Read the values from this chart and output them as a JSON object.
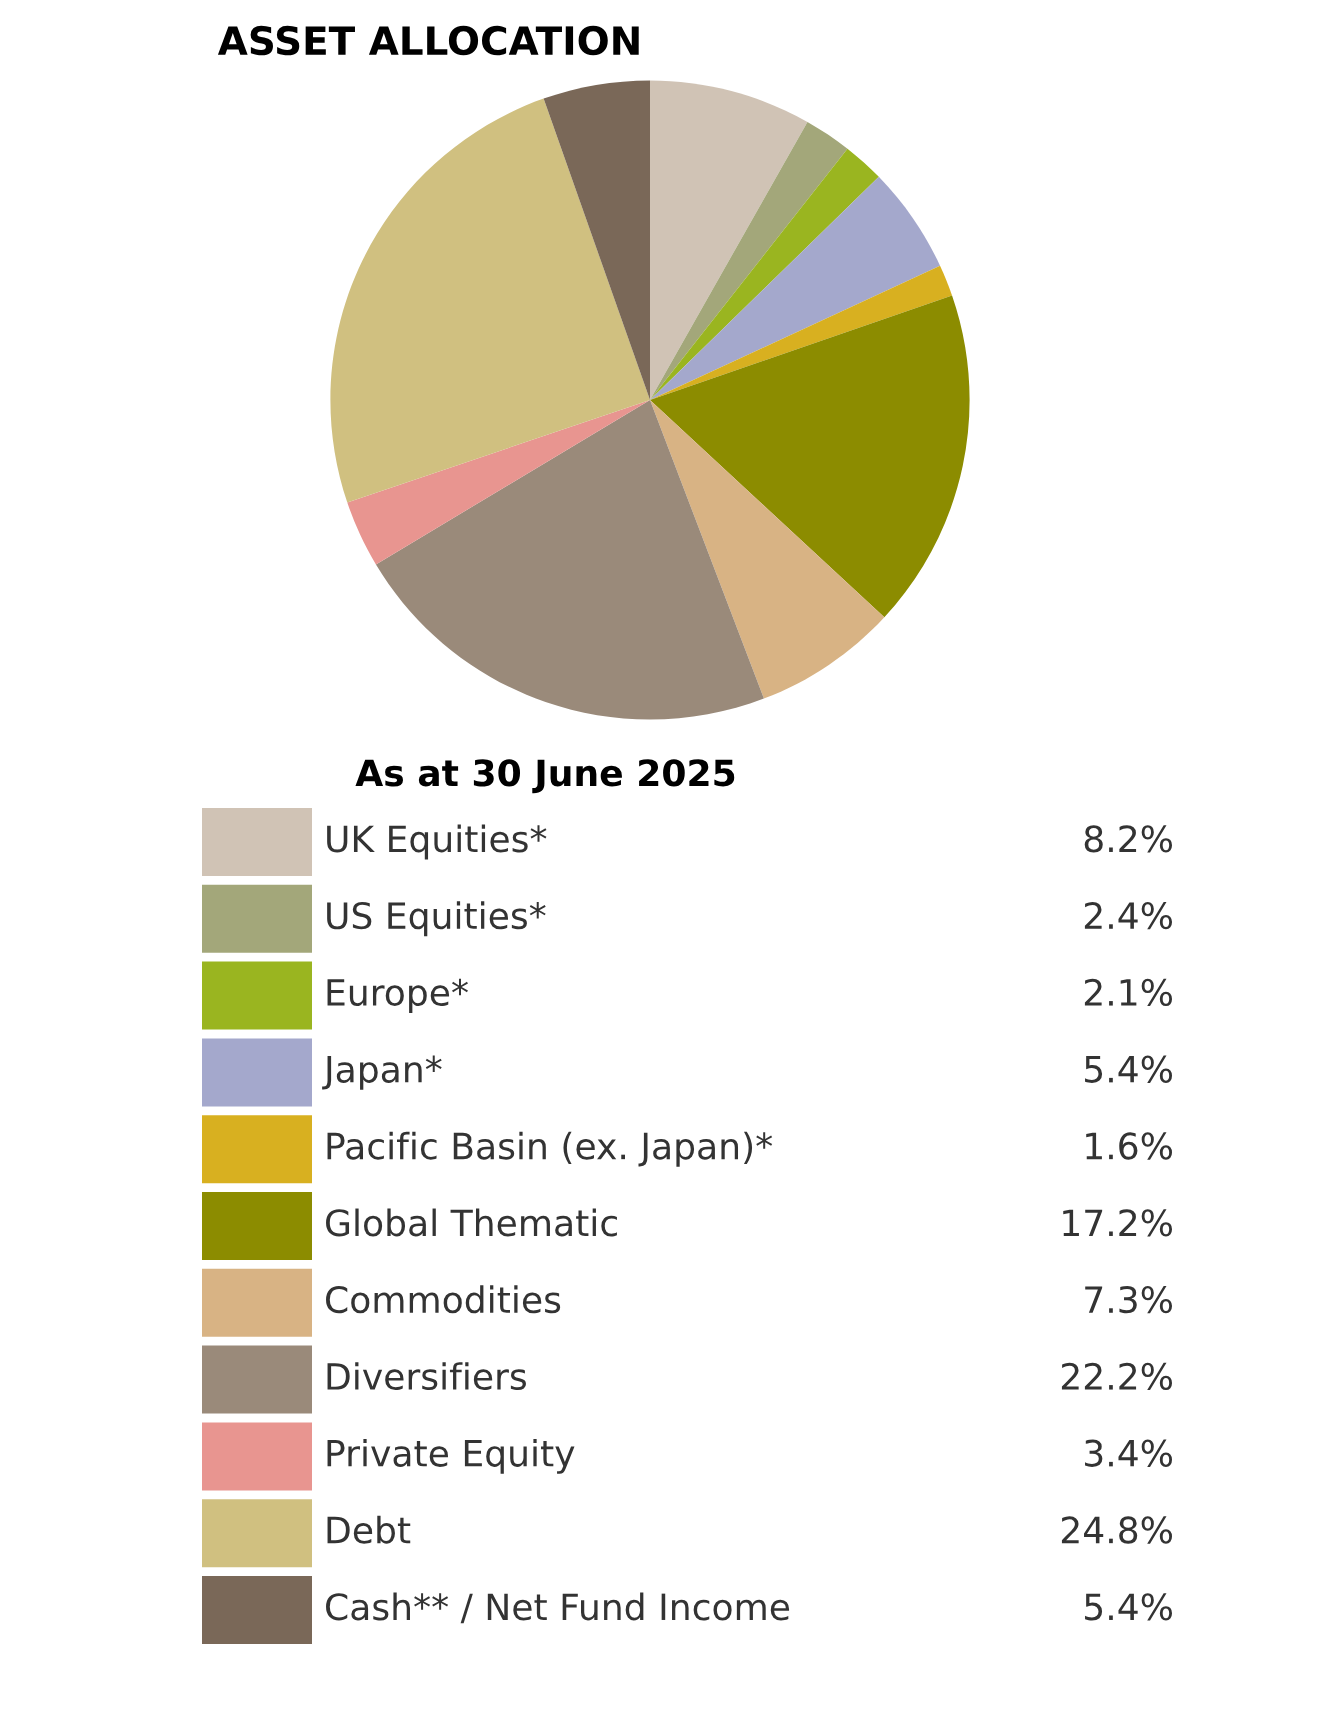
{
  "chart_data": {
    "type": "pie",
    "title": "ASSET ALLOCATION",
    "subtitle": "As at 30 June 2025",
    "categories": [
      "UK Equities*",
      "US Equities*",
      "Europe*",
      "Japan*",
      "Pacific Basin (ex. Japan)*",
      "Global Thematic",
      "Commodities",
      "Diversifiers",
      "Private Equity",
      "Debt",
      "Cash** / Net Fund Income"
    ],
    "values": [
      8.2,
      2.4,
      2.1,
      5.4,
      1.6,
      17.2,
      7.3,
      22.2,
      3.4,
      24.8,
      5.4
    ],
    "colors": [
      "#d0c3b5",
      "#a3a77a",
      "#9ab520",
      "#a4a8cc",
      "#d8b020",
      "#8c8c00",
      "#d8b384",
      "#9a8a7a",
      "#e89590",
      "#d0c080",
      "#7a6858"
    ],
    "value_labels": [
      "8.2%",
      "2.4%",
      "2.1%",
      "5.4%",
      "1.6%",
      "17.2%",
      "7.3%",
      "22.2%",
      "3.4%",
      "24.8%",
      "5.4%"
    ],
    "legend": "bottom"
  }
}
